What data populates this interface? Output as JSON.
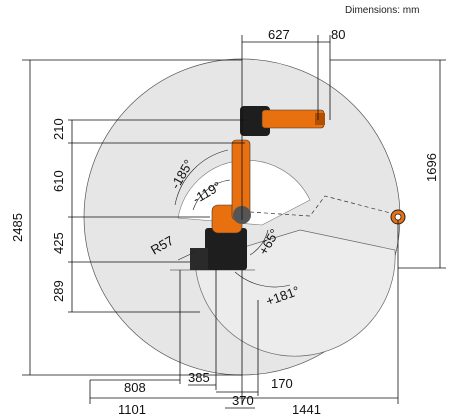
{
  "header": {
    "units": "Dimensions: mm"
  },
  "dimensions": {
    "top_627": "627",
    "top_80": "80",
    "left_210": "210",
    "left_610": "610",
    "left_425": "425",
    "left_289": "289",
    "left_2485": "2485",
    "right_1696": "1696",
    "bottom_808": "808",
    "bottom_385": "385",
    "bottom_170": "170",
    "bottom_1101": "1101",
    "bottom_370": "370",
    "bottom_1441": "1441"
  },
  "angles": {
    "a_minus185": "-185°",
    "a_minus119": "-119°",
    "a_plus65": "+65°",
    "a_plus181": "+181°",
    "r57": "R57"
  },
  "colors": {
    "robot_orange": "#e8700f",
    "robot_dark": "#1e1e1e",
    "envelope": "#e6e6e6"
  }
}
